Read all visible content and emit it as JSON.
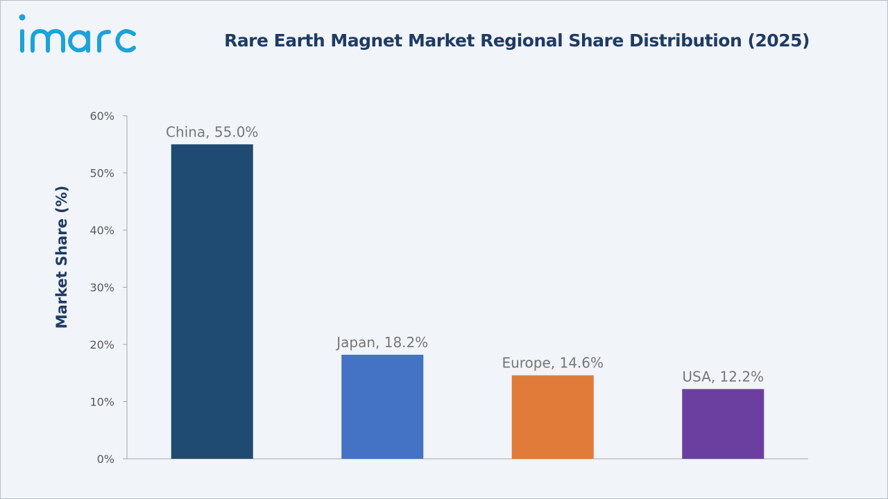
{
  "brand": {
    "logo_text": "imarc",
    "logo_color": "#1aa3d8"
  },
  "chart_data": {
    "type": "bar",
    "title": "Rare Earth Magnet Market Regional Share Distribution (2025)",
    "ylabel": "Market Share (%)",
    "xlabel": "",
    "categories": [
      "China",
      "Japan",
      "Europe",
      "USA"
    ],
    "values": [
      55.0,
      18.2,
      14.6,
      12.2
    ],
    "data_labels": [
      "China, 55.0%",
      "Japan, 18.2%",
      "Europe, 14.6%",
      "USA, 12.2%"
    ],
    "colors": [
      "#1f4b72",
      "#4472c4",
      "#e07b39",
      "#6b3fa0"
    ],
    "ylim": [
      0,
      60
    ],
    "yticks": [
      "0%",
      "10%",
      "20%",
      "30%",
      "40%",
      "50%",
      "60%"
    ],
    "ytick_values": [
      0,
      10,
      20,
      30,
      40,
      50,
      60
    ],
    "grid": false,
    "legend": "none"
  }
}
